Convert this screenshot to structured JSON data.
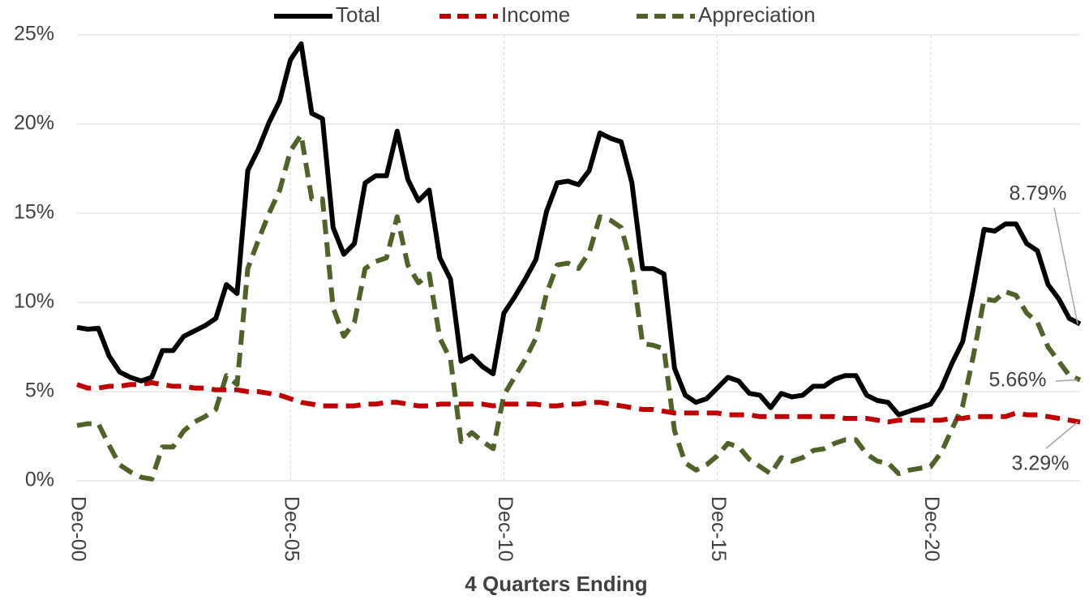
{
  "chart_data": {
    "type": "line",
    "x_label": "4 Quarters Ending",
    "categories": [
      "Dec-00",
      null,
      null,
      null,
      null,
      null,
      null,
      null,
      null,
      null,
      null,
      null,
      null,
      null,
      null,
      null,
      null,
      null,
      null,
      null,
      "Dec-05",
      null,
      null,
      null,
      null,
      null,
      null,
      null,
      null,
      null,
      null,
      null,
      null,
      null,
      null,
      null,
      null,
      null,
      null,
      null,
      "Dec-10",
      null,
      null,
      null,
      null,
      null,
      null,
      null,
      null,
      null,
      null,
      null,
      null,
      null,
      null,
      null,
      null,
      null,
      null,
      null,
      "Dec-15",
      null,
      null,
      null,
      null,
      null,
      null,
      null,
      null,
      null,
      null,
      null,
      null,
      null,
      null,
      null,
      null,
      null,
      null,
      null,
      "Dec-20",
      null,
      null,
      null,
      null,
      null,
      null,
      null,
      null,
      null,
      null,
      null,
      null,
      null,
      null
    ],
    "series": [
      {
        "name": "Total",
        "color": "#000000",
        "dashed": false,
        "values": [
          8.6,
          8.5,
          8.55,
          7.0,
          6.1,
          5.8,
          5.6,
          5.8,
          7.3,
          7.3,
          8.1,
          8.4,
          8.7,
          9.1,
          11.0,
          10.5,
          17.4,
          18.6,
          20.1,
          21.3,
          23.6,
          24.5,
          20.6,
          20.3,
          14.2,
          12.7,
          13.3,
          16.7,
          17.1,
          17.1,
          19.6,
          16.9,
          15.7,
          16.3,
          12.5,
          11.3,
          6.7,
          7.0,
          6.4,
          6.0,
          9.4,
          10.3,
          11.3,
          12.4,
          15.1,
          16.7,
          16.8,
          16.6,
          17.4,
          19.5,
          19.2,
          19.0,
          16.7,
          11.9,
          11.9,
          11.6,
          6.3,
          4.8,
          4.4,
          4.6,
          5.2,
          5.8,
          5.6,
          4.9,
          4.8,
          4.1,
          4.9,
          4.7,
          4.8,
          5.3,
          5.3,
          5.7,
          5.9,
          5.9,
          4.8,
          4.5,
          4.4,
          3.7,
          3.9,
          4.1,
          4.3,
          5.2,
          6.6,
          7.8,
          10.8,
          14.1,
          14.0,
          14.4,
          14.4,
          13.3,
          12.9,
          11.0,
          10.2,
          9.1,
          8.79
        ],
        "value_labels": [
          null,
          null,
          null,
          null,
          null,
          null,
          null,
          null,
          null,
          null,
          null,
          null,
          null,
          null,
          null,
          null,
          null,
          null,
          null,
          null,
          null,
          null,
          null,
          null,
          null,
          null,
          null,
          null,
          null,
          null,
          null,
          null,
          null,
          null,
          null,
          null,
          null,
          null,
          null,
          null,
          null,
          null,
          null,
          null,
          null,
          null,
          null,
          null,
          null,
          null,
          null,
          null,
          null,
          null,
          null,
          null,
          null,
          null,
          null,
          null,
          null,
          null,
          null,
          null,
          null,
          null,
          null,
          null,
          null,
          null,
          null,
          null,
          null,
          null,
          null,
          null,
          null,
          null,
          null,
          null,
          null,
          null,
          null,
          null,
          null,
          null,
          null,
          null,
          null,
          null,
          null,
          null,
          null,
          null,
          "8.79%"
        ]
      },
      {
        "name": "Income",
        "color": "#c00000",
        "dashed": true,
        "values": [
          5.4,
          5.2,
          5.2,
          5.3,
          5.3,
          5.4,
          5.4,
          5.5,
          5.4,
          5.3,
          5.3,
          5.2,
          5.2,
          5.1,
          5.1,
          5.1,
          5.0,
          5.0,
          4.9,
          4.8,
          4.6,
          4.4,
          4.3,
          4.2,
          4.2,
          4.2,
          4.2,
          4.3,
          4.3,
          4.4,
          4.4,
          4.3,
          4.2,
          4.2,
          4.3,
          4.3,
          4.3,
          4.3,
          4.3,
          4.2,
          4.3,
          4.3,
          4.3,
          4.3,
          4.2,
          4.2,
          4.3,
          4.3,
          4.4,
          4.4,
          4.3,
          4.2,
          4.1,
          4.0,
          4.0,
          3.9,
          3.8,
          3.8,
          3.8,
          3.8,
          3.8,
          3.7,
          3.7,
          3.7,
          3.6,
          3.6,
          3.6,
          3.6,
          3.6,
          3.6,
          3.6,
          3.6,
          3.5,
          3.5,
          3.5,
          3.4,
          3.3,
          3.4,
          3.4,
          3.4,
          3.4,
          3.4,
          3.5,
          3.5,
          3.6,
          3.6,
          3.6,
          3.6,
          3.8,
          3.7,
          3.7,
          3.6,
          3.5,
          3.4,
          3.29
        ],
        "value_labels": [
          null,
          null,
          null,
          null,
          null,
          null,
          null,
          null,
          null,
          null,
          null,
          null,
          null,
          null,
          null,
          null,
          null,
          null,
          null,
          null,
          null,
          null,
          null,
          null,
          null,
          null,
          null,
          null,
          null,
          null,
          null,
          null,
          null,
          null,
          null,
          null,
          null,
          null,
          null,
          null,
          null,
          null,
          null,
          null,
          null,
          null,
          null,
          null,
          null,
          null,
          null,
          null,
          null,
          null,
          null,
          null,
          null,
          null,
          null,
          null,
          null,
          null,
          null,
          null,
          null,
          null,
          null,
          null,
          null,
          null,
          null,
          null,
          null,
          null,
          null,
          null,
          null,
          null,
          null,
          null,
          null,
          null,
          null,
          null,
          null,
          null,
          null,
          null,
          null,
          null,
          null,
          null,
          null,
          null,
          "3.29%"
        ]
      },
      {
        "name": "Appreciation",
        "color": "#4f6228",
        "dashed": true,
        "values": [
          3.1,
          3.2,
          3.2,
          2.0,
          0.9,
          0.5,
          0.2,
          0.1,
          1.9,
          1.9,
          2.8,
          3.3,
          3.6,
          4.0,
          5.9,
          5.4,
          11.9,
          13.5,
          15.0,
          16.3,
          18.5,
          19.4,
          15.8,
          15.8,
          9.7,
          8.1,
          8.9,
          11.9,
          12.3,
          12.5,
          14.8,
          12.1,
          11.1,
          11.6,
          8.0,
          6.8,
          2.2,
          2.7,
          2.2,
          1.8,
          4.8,
          5.8,
          6.8,
          8.0,
          10.5,
          12.1,
          12.2,
          11.9,
          12.8,
          14.8,
          14.6,
          14.2,
          12.0,
          7.7,
          7.6,
          7.4,
          2.8,
          1.0,
          0.6,
          0.9,
          1.4,
          2.1,
          1.9,
          1.2,
          0.8,
          0.4,
          1.3,
          1.1,
          1.3,
          1.7,
          1.8,
          2.1,
          2.3,
          2.3,
          1.5,
          1.1,
          1.0,
          0.4,
          0.6,
          0.7,
          0.8,
          1.6,
          2.9,
          4.2,
          7.0,
          10.2,
          10.1,
          10.6,
          10.4,
          9.4,
          8.9,
          7.5,
          6.7,
          5.9,
          5.66
        ],
        "value_labels": [
          null,
          null,
          null,
          null,
          null,
          null,
          null,
          null,
          null,
          null,
          null,
          null,
          null,
          null,
          null,
          null,
          null,
          null,
          null,
          null,
          null,
          null,
          null,
          null,
          null,
          null,
          null,
          null,
          null,
          null,
          null,
          null,
          null,
          null,
          null,
          null,
          null,
          null,
          null,
          null,
          null,
          null,
          null,
          null,
          null,
          null,
          null,
          null,
          null,
          null,
          null,
          null,
          null,
          null,
          null,
          null,
          null,
          null,
          null,
          null,
          null,
          null,
          null,
          null,
          null,
          null,
          null,
          null,
          null,
          null,
          null,
          null,
          null,
          null,
          null,
          null,
          null,
          null,
          null,
          null,
          null,
          null,
          null,
          null,
          null,
          null,
          null,
          null,
          null,
          null,
          null,
          null,
          null,
          null,
          "5.66%"
        ]
      }
    ],
    "ylim": [
      0,
      25
    ],
    "yticks": [
      {
        "value": 0,
        "label": "0%"
      },
      {
        "value": 5,
        "label": "5%"
      },
      {
        "value": 10,
        "label": "10%"
      },
      {
        "value": 15,
        "label": "15%"
      },
      {
        "value": 20,
        "label": "20%"
      },
      {
        "value": 25,
        "label": "25%"
      }
    ],
    "grid": true,
    "legend": "top"
  }
}
